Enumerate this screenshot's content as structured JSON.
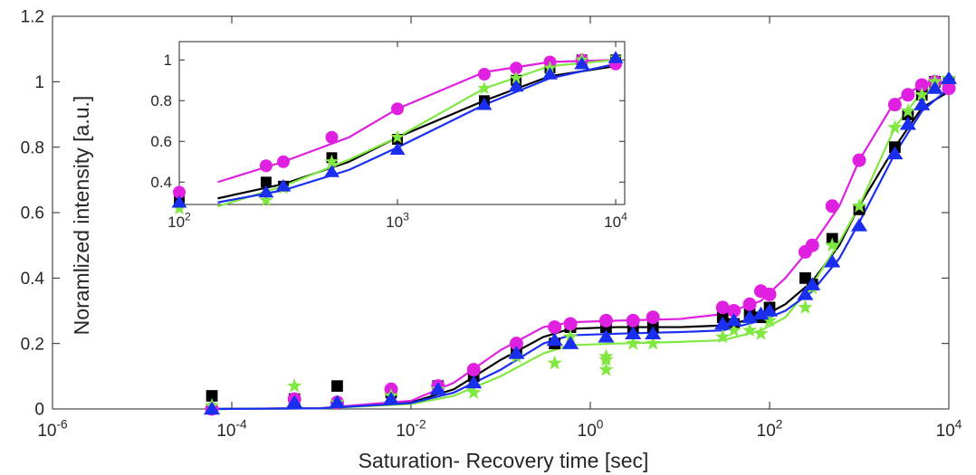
{
  "chart_data": [
    {
      "type": "scatter",
      "title": "",
      "xlabel": "Saturation- Recovery time [sec]",
      "ylabel": "Noramlized intensity [a.u.]",
      "xscale": "log",
      "xlim": [
        1e-06,
        10000.0
      ],
      "ylim": [
        0,
        1.2
      ],
      "xticks": [
        {
          "value": 1e-06,
          "base": "10",
          "exp": "-6"
        },
        {
          "value": 0.0001,
          "base": "10",
          "exp": "-4"
        },
        {
          "value": 0.01,
          "base": "10",
          "exp": "-2"
        },
        {
          "value": 1.0,
          "base": "10",
          "exp": "0"
        },
        {
          "value": 100.0,
          "base": "10",
          "exp": "2"
        },
        {
          "value": 10000.0,
          "base": "10",
          "exp": "4"
        }
      ],
      "yticks": [
        {
          "value": 0,
          "label": "0"
        },
        {
          "value": 0.2,
          "label": "0.2"
        },
        {
          "value": 0.4,
          "label": "0.4"
        },
        {
          "value": 0.6,
          "label": "0.6"
        },
        {
          "value": 0.8,
          "label": "0.8"
        },
        {
          "value": 1,
          "label": "1"
        },
        {
          "value": 1.2,
          "label": "1.2"
        }
      ],
      "grid": false,
      "series": [
        {
          "marker": "square",
          "color": "#000000",
          "points": [
            [
              6e-05,
              0.04
            ],
            [
              0.0005,
              0.03
            ],
            [
              0.0015,
              0.07
            ],
            [
              0.006,
              0.05
            ],
            [
              0.02,
              0.07
            ],
            [
              0.05,
              0.1
            ],
            [
              0.15,
              0.18
            ],
            [
              0.4,
              0.2
            ],
            [
              0.6,
              0.25
            ],
            [
              1.5,
              0.25
            ],
            [
              3,
              0.25
            ],
            [
              5,
              0.25
            ],
            [
              30,
              0.28
            ],
            [
              40,
              0.26
            ],
            [
              60,
              0.29
            ],
            [
              80,
              0.28
            ],
            [
              100,
              0.31
            ],
            [
              250,
              0.4
            ],
            [
              300,
              0.38
            ],
            [
              500,
              0.52
            ],
            [
              1000,
              0.61
            ],
            [
              2500,
              0.8
            ],
            [
              3500,
              0.9
            ],
            [
              5000,
              0.96
            ],
            [
              7000,
              1.0
            ],
            [
              10000,
              1.0
            ]
          ],
          "curve": [
            [
              6e-05,
              0.0
            ],
            [
              0.001,
              0.002
            ],
            [
              0.01,
              0.02
            ],
            [
              0.03,
              0.06
            ],
            [
              0.1,
              0.15
            ],
            [
              0.3,
              0.22
            ],
            [
              0.6,
              0.245
            ],
            [
              2,
              0.25
            ],
            [
              10,
              0.25
            ],
            [
              30,
              0.255
            ],
            [
              80,
              0.28
            ],
            [
              150,
              0.32
            ],
            [
              300,
              0.39
            ],
            [
              600,
              0.5
            ],
            [
              1000,
              0.62
            ],
            [
              2500,
              0.8
            ],
            [
              5000,
              0.92
            ],
            [
              10000,
              0.97
            ]
          ]
        },
        {
          "marker": "circle",
          "color": "#e020e0",
          "points": [
            [
              6e-05,
              0.0
            ],
            [
              0.0005,
              0.03
            ],
            [
              0.0015,
              0.02
            ],
            [
              0.006,
              0.06
            ],
            [
              0.02,
              0.07
            ],
            [
              0.05,
              0.12
            ],
            [
              0.15,
              0.2
            ],
            [
              0.4,
              0.25
            ],
            [
              0.6,
              0.26
            ],
            [
              1.5,
              0.27
            ],
            [
              3,
              0.27
            ],
            [
              5,
              0.28
            ],
            [
              30,
              0.31
            ],
            [
              40,
              0.3
            ],
            [
              60,
              0.32
            ],
            [
              80,
              0.36
            ],
            [
              100,
              0.35
            ],
            [
              250,
              0.48
            ],
            [
              300,
              0.5
            ],
            [
              500,
              0.62
            ],
            [
              1000,
              0.76
            ],
            [
              2500,
              0.93
            ],
            [
              3500,
              0.96
            ],
            [
              5000,
              0.99
            ],
            [
              7000,
              1.0
            ],
            [
              10000,
              0.98
            ]
          ],
          "curve": [
            [
              6e-05,
              0.0
            ],
            [
              0.001,
              0.003
            ],
            [
              0.01,
              0.025
            ],
            [
              0.03,
              0.08
            ],
            [
              0.1,
              0.18
            ],
            [
              0.3,
              0.25
            ],
            [
              0.6,
              0.265
            ],
            [
              2,
              0.27
            ],
            [
              10,
              0.275
            ],
            [
              30,
              0.29
            ],
            [
              80,
              0.33
            ],
            [
              150,
              0.4
            ],
            [
              300,
              0.5
            ],
            [
              600,
              0.62
            ],
            [
              1000,
              0.76
            ],
            [
              2500,
              0.94
            ],
            [
              5000,
              0.99
            ],
            [
              10000,
              1.0
            ]
          ]
        },
        {
          "marker": "star",
          "color": "#80e840",
          "points": [
            [
              6e-05,
              0.01
            ],
            [
              0.0005,
              0.07
            ],
            [
              0.0015,
              0.02
            ],
            [
              0.006,
              0.04
            ],
            [
              0.02,
              0.06
            ],
            [
              0.05,
              0.05
            ],
            [
              0.15,
              0.16
            ],
            [
              0.4,
              0.14
            ],
            [
              0.6,
              0.22
            ],
            [
              1.5,
              0.16
            ],
            [
              1.5,
              0.12
            ],
            [
              1.5,
              0.15
            ],
            [
              3,
              0.2
            ],
            [
              5,
              0.2
            ],
            [
              30,
              0.22
            ],
            [
              40,
              0.24
            ],
            [
              60,
              0.24
            ],
            [
              80,
              0.23
            ],
            [
              100,
              0.27
            ],
            [
              250,
              0.31
            ],
            [
              300,
              0.37
            ],
            [
              500,
              0.5
            ],
            [
              1000,
              0.62
            ],
            [
              2500,
              0.86
            ],
            [
              3500,
              0.91
            ],
            [
              5000,
              0.96
            ],
            [
              7000,
              1.0
            ],
            [
              10000,
              1.01
            ]
          ],
          "curve": [
            [
              6e-05,
              0.0
            ],
            [
              0.001,
              0.002
            ],
            [
              0.01,
              0.015
            ],
            [
              0.03,
              0.04
            ],
            [
              0.1,
              0.1
            ],
            [
              0.3,
              0.17
            ],
            [
              0.6,
              0.195
            ],
            [
              2,
              0.2
            ],
            [
              10,
              0.205
            ],
            [
              30,
              0.21
            ],
            [
              80,
              0.24
            ],
            [
              150,
              0.28
            ],
            [
              300,
              0.38
            ],
            [
              600,
              0.51
            ],
            [
              1000,
              0.62
            ],
            [
              2500,
              0.86
            ],
            [
              5000,
              0.97
            ],
            [
              10000,
              1.0
            ]
          ]
        },
        {
          "marker": "triangle",
          "color": "#1a2ef0",
          "points": [
            [
              6e-05,
              0.0
            ],
            [
              0.0005,
              0.02
            ],
            [
              0.0015,
              0.02
            ],
            [
              0.006,
              0.03
            ],
            [
              0.02,
              0.06
            ],
            [
              0.05,
              0.08
            ],
            [
              0.15,
              0.17
            ],
            [
              0.4,
              0.21
            ],
            [
              0.6,
              0.2
            ],
            [
              1.5,
              0.22
            ],
            [
              3,
              0.23
            ],
            [
              5,
              0.23
            ],
            [
              30,
              0.26
            ],
            [
              40,
              0.27
            ],
            [
              60,
              0.28
            ],
            [
              80,
              0.29
            ],
            [
              100,
              0.3
            ],
            [
              250,
              0.35
            ],
            [
              300,
              0.38
            ],
            [
              500,
              0.45
            ],
            [
              1000,
              0.56
            ],
            [
              2500,
              0.78
            ],
            [
              3500,
              0.87
            ],
            [
              5000,
              0.93
            ],
            [
              7000,
              0.98
            ],
            [
              10000,
              1.01
            ]
          ],
          "curve": [
            [
              6e-05,
              0.0
            ],
            [
              0.001,
              0.002
            ],
            [
              0.01,
              0.018
            ],
            [
              0.03,
              0.05
            ],
            [
              0.1,
              0.12
            ],
            [
              0.3,
              0.2
            ],
            [
              0.6,
              0.225
            ],
            [
              2,
              0.23
            ],
            [
              10,
              0.235
            ],
            [
              30,
              0.24
            ],
            [
              80,
              0.27
            ],
            [
              150,
              0.3
            ],
            [
              300,
              0.36
            ],
            [
              600,
              0.46
            ],
            [
              1000,
              0.57
            ],
            [
              2500,
              0.78
            ],
            [
              5000,
              0.91
            ],
            [
              10000,
              0.98
            ]
          ]
        }
      ]
    },
    {
      "type": "scatter",
      "title": "",
      "xlabel": "",
      "ylabel": "",
      "xscale": "log",
      "xlim": [
        100,
        11000
      ],
      "ylim": [
        0.29,
        1.09
      ],
      "xticks": [
        {
          "value": 100,
          "base": "10",
          "exp": "2"
        },
        {
          "value": 1000,
          "base": "10",
          "exp": "3"
        },
        {
          "value": 10000,
          "base": "10",
          "exp": "4"
        }
      ],
      "yticks": [
        {
          "value": 0.4,
          "label": "0.4"
        },
        {
          "value": 0.6,
          "label": "0.6"
        },
        {
          "value": 0.8,
          "label": "0.8"
        },
        {
          "value": 1,
          "label": "1"
        }
      ],
      "grid": false
    }
  ]
}
